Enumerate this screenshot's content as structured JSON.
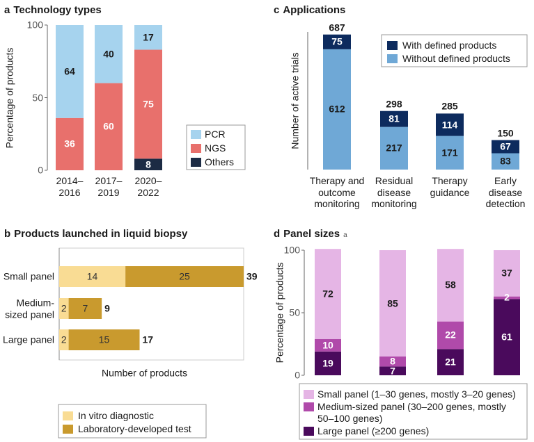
{
  "chart_data": [
    {
      "type": "bar",
      "panel_label": "a",
      "title": "Technology types",
      "ylabel": "Percentage of products",
      "categories": [
        "2014–2016",
        "2017–2019",
        "2020–2022"
      ],
      "series": [
        {
          "name": "Others",
          "color": "#1c2b44",
          "values": [
            null,
            null,
            8
          ]
        },
        {
          "name": "NGS",
          "color": "#e8706c",
          "values": [
            36,
            60,
            75
          ]
        },
        {
          "name": "PCR",
          "color": "#a6d3ee",
          "values": [
            64,
            40,
            17
          ]
        }
      ],
      "ylim": [
        0,
        100
      ],
      "yticks": [
        0,
        50,
        100
      ]
    },
    {
      "type": "barh",
      "panel_label": "b",
      "title": "Products launched in liquid biopsy",
      "xlabel": "Number of products",
      "categories": [
        "Small panel",
        "Medium-sized panel",
        "Large panel"
      ],
      "series": [
        {
          "name": "In vitro diagnostic",
          "color": "#f9dc94",
          "values": [
            14,
            2,
            2
          ]
        },
        {
          "name": "Laboratory-developed test",
          "color": "#c99a2e",
          "values": [
            25,
            7,
            15
          ]
        }
      ],
      "totals": [
        39,
        9,
        17
      ],
      "xlim": [
        0,
        39
      ]
    },
    {
      "type": "bar",
      "panel_label": "c",
      "title": "Applications",
      "ylabel": "Number of active trials",
      "categories": [
        "Therapy and outcome monitoring",
        "Residual disease monitoring",
        "Therapy guidance",
        "Early disease detection"
      ],
      "series": [
        {
          "name": "Without defined products",
          "color": "#6fa8d6",
          "values": [
            612,
            217,
            171,
            83
          ]
        },
        {
          "name": "With defined products",
          "color": "#0d2b5e",
          "values": [
            75,
            81,
            114,
            67
          ]
        }
      ],
      "totals": [
        687,
        298,
        285,
        150
      ],
      "ylim": [
        0,
        700
      ]
    },
    {
      "type": "bar",
      "panel_label": "d",
      "title": "Panel sizes",
      "title_superscript": "a",
      "ylabel": "Percentage of products",
      "categories": [
        null,
        null,
        null,
        null
      ],
      "series": [
        {
          "name": "Large panel (≥200 genes)",
          "color": "#4a0a5c",
          "values": [
            19,
            7,
            21,
            61
          ]
        },
        {
          "name": "Medium-sized panel (30–200 genes, mostly 50–100 genes)",
          "color": "#b04aaa",
          "values": [
            10,
            8,
            22,
            2
          ]
        },
        {
          "name": "Small panel (1–30 genes, mostly 3–20 genes)",
          "color": "#e5b5e5",
          "values": [
            72,
            85,
            58,
            37
          ]
        }
      ],
      "ylim": [
        0,
        100
      ],
      "yticks": [
        0,
        50,
        100
      ]
    }
  ]
}
